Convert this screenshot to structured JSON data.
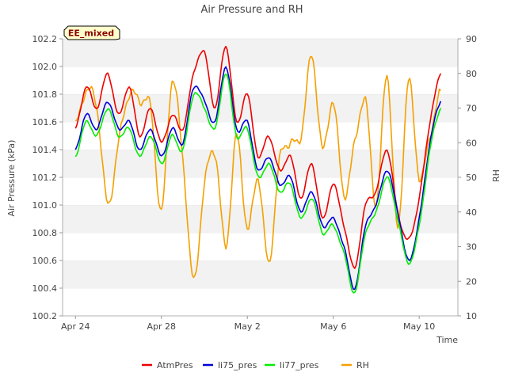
{
  "chart_data": {
    "type": "line",
    "title": "Air Pressure and RH",
    "tag": "EE_mixed",
    "xlabel": "Time",
    "ylabel": "Air Pressure (kPa)",
    "y2label": "RH",
    "xlim": [
      -0.6,
      17.8
    ],
    "ylim": [
      100.2,
      102.2
    ],
    "y2lim": [
      10,
      90
    ],
    "x_ticks": [
      {
        "day": 0,
        "label": "Apr 24"
      },
      {
        "day": 4,
        "label": "Apr 28"
      },
      {
        "day": 8,
        "label": "May 2"
      },
      {
        "day": 12,
        "label": "May 6"
      },
      {
        "day": 16,
        "label": "May 10"
      }
    ],
    "y_ticks": [
      "100.2",
      "100.4",
      "100.6",
      "100.8",
      "101.0",
      "101.2",
      "101.4",
      "101.6",
      "101.8",
      "102.0",
      "102.2"
    ],
    "y2_ticks": [
      "10",
      "20",
      "30",
      "40",
      "50",
      "60",
      "70",
      "80",
      "90"
    ],
    "grid": "horizontal bands",
    "legend_position": "bottom",
    "x": [
      0,
      0.5,
      1,
      1.5,
      2,
      2.5,
      3,
      3.5,
      4,
      4.5,
      5,
      5.5,
      6,
      6.5,
      7,
      7.5,
      8,
      8.5,
      9,
      9.5,
      10,
      10.5,
      11,
      11.5,
      12,
      12.5,
      13,
      13.5,
      14,
      14.5,
      15,
      15.5,
      16,
      16.5,
      17
    ],
    "series": [
      {
        "name": "AtmPres",
        "color": "#ee0000",
        "axis": "left",
        "values": [
          101.55,
          101.85,
          101.7,
          101.95,
          101.65,
          101.85,
          101.5,
          101.7,
          101.45,
          101.65,
          101.55,
          101.95,
          102.1,
          101.7,
          102.15,
          101.6,
          101.8,
          101.35,
          101.5,
          101.25,
          101.35,
          101.05,
          101.3,
          100.9,
          101.15,
          100.85,
          100.55,
          101.0,
          101.1,
          101.4,
          100.95,
          100.75,
          101.05,
          101.6,
          101.95
        ]
      },
      {
        "name": "li75_pres",
        "color": "#0000dd",
        "axis": "left",
        "values": [
          101.4,
          101.65,
          101.55,
          101.75,
          101.55,
          101.6,
          101.4,
          101.55,
          101.35,
          101.55,
          101.45,
          101.85,
          101.75,
          101.6,
          102.0,
          101.55,
          101.6,
          101.25,
          101.35,
          101.15,
          101.2,
          100.95,
          101.1,
          100.85,
          100.9,
          100.7,
          100.4,
          100.85,
          101.0,
          101.25,
          100.95,
          100.6,
          100.9,
          101.45,
          101.75
        ]
      },
      {
        "name": "li77_pres",
        "color": "#00ee00",
        "axis": "left",
        "values": [
          101.35,
          101.6,
          101.5,
          101.7,
          101.5,
          101.55,
          101.35,
          101.5,
          101.3,
          101.5,
          101.4,
          101.8,
          101.7,
          101.55,
          101.95,
          101.5,
          101.55,
          101.2,
          101.3,
          101.1,
          101.15,
          100.9,
          101.05,
          100.8,
          100.85,
          100.65,
          100.37,
          100.8,
          100.95,
          101.2,
          100.9,
          100.58,
          100.85,
          101.4,
          101.7
        ]
      },
      {
        "name": "RH",
        "color": "#f5a000",
        "axis": "right",
        "values": [
          65,
          75,
          70,
          42,
          60,
          74,
          72,
          70,
          40,
          78,
          55,
          20,
          48,
          57,
          30,
          62,
          35,
          50,
          25,
          55,
          60,
          62,
          85,
          58,
          72,
          45,
          60,
          72,
          42,
          80,
          35,
          78,
          50,
          62,
          75
        ]
      }
    ]
  }
}
